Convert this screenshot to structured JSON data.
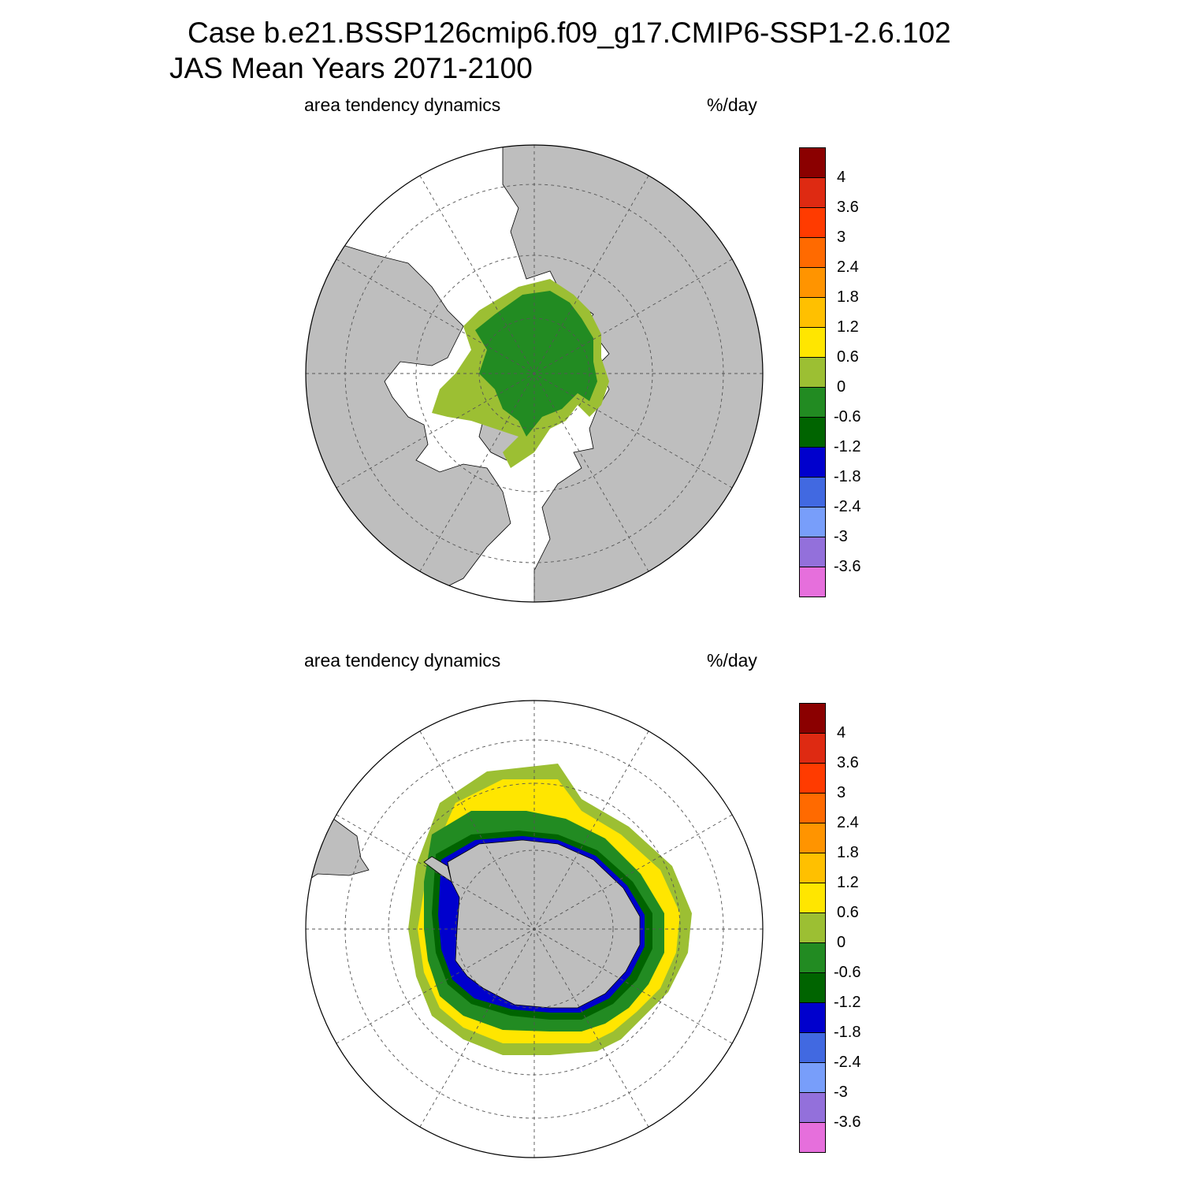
{
  "title": {
    "line1": "Case b.e21.BSSP126cmip6.f09_g17.CMIP6-SSP1-2.6.102",
    "line2": "JAS Mean   Years 2071-2100"
  },
  "panels": [
    {
      "id": "north",
      "hemisphere": "Northern Hemisphere (polar stereographic)",
      "left_label": "area tendency dynamics",
      "right_label": "%/day"
    },
    {
      "id": "south",
      "hemisphere": "Southern Hemisphere (polar stereographic)",
      "left_label": "area tendency dynamics",
      "right_label": "%/day"
    }
  ],
  "colorbar": {
    "units": "%/day",
    "labels": [
      "4",
      "3.6",
      "3",
      "2.4",
      "1.8",
      "1.2",
      "0.6",
      "0",
      "-0.6",
      "-1.2",
      "-1.8",
      "-2.4",
      "-3",
      "-3.6"
    ],
    "colors": [
      "#8b0000",
      "#de2a12",
      "#ff3b00",
      "#ff6a00",
      "#ff9400",
      "#ffc000",
      "#ffe600",
      "#9cbf33",
      "#228b22",
      "#006400",
      "#0000cd",
      "#4169e1",
      "#789efa",
      "#9370db",
      "#e66fdc"
    ]
  },
  "styles": {
    "land": "#bebebe",
    "ocean": "#ffffff",
    "grid": "#555555"
  }
}
